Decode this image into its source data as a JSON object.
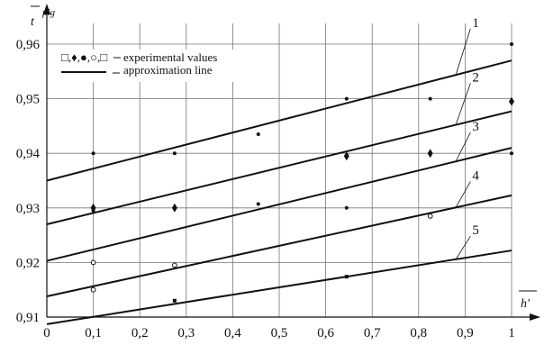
{
  "chart_data": {
    "type": "scatter",
    "xlabel": "h'",
    "ylabel": "t pig",
    "xlim": [
      0,
      1
    ],
    "ylim": [
      0.91,
      0.965
    ],
    "x_ticks": [
      "0",
      "0,1",
      "0,2",
      "0,3",
      "0,4",
      "0,5",
      "0,6",
      "0,7",
      "0,8",
      "0,9",
      "1"
    ],
    "y_ticks": [
      "0,91",
      "0,92",
      "0,93",
      "0,94",
      "0,95",
      "0,96"
    ],
    "grid": true,
    "legend": {
      "placement": "top-left",
      "markers_text": "□,♦,●,○,□",
      "experimental_label": "experimental values",
      "approx_label": "approximation line"
    },
    "series": [
      {
        "name": "1",
        "line": [
          [
            0,
            0.935
          ],
          [
            1,
            0.957
          ]
        ],
        "points": [
          [
            0.1,
            0.94
          ],
          [
            0.275,
            0.94
          ],
          [
            0.455,
            0.9435
          ],
          [
            0.645,
            0.95
          ],
          [
            0.825,
            0.95
          ],
          [
            1.0,
            0.96
          ]
        ],
        "marker": "dot"
      },
      {
        "name": "2",
        "line": [
          [
            0,
            0.927
          ],
          [
            1,
            0.9477
          ]
        ],
        "points": [
          [
            0.1,
            0.93
          ],
          [
            0.275,
            0.93
          ],
          [
            0.645,
            0.9395
          ],
          [
            0.825,
            0.94
          ],
          [
            1.0,
            0.9495
          ]
        ],
        "marker": "diamond"
      },
      {
        "name": "3",
        "line": [
          [
            0,
            0.9203
          ],
          [
            1,
            0.941
          ]
        ],
        "points": [
          [
            0.1,
            0.9295
          ],
          [
            0.455,
            0.9307
          ],
          [
            0.645,
            0.93
          ],
          [
            1.0,
            0.94
          ]
        ],
        "marker": "dot"
      },
      {
        "name": "4",
        "line": [
          [
            0,
            0.9138
          ],
          [
            1,
            0.9323
          ]
        ],
        "points": [
          [
            0.1,
            0.915
          ],
          [
            0.1,
            0.92
          ],
          [
            0.275,
            0.9195
          ],
          [
            0.825,
            0.9285
          ]
        ],
        "marker": "circle"
      },
      {
        "name": "5",
        "line": [
          [
            0,
            0.9087
          ],
          [
            1,
            0.9222
          ]
        ],
        "points": [
          [
            0.275,
            0.913
          ],
          [
            0.645,
            0.9174
          ]
        ],
        "marker": "square"
      }
    ]
  }
}
